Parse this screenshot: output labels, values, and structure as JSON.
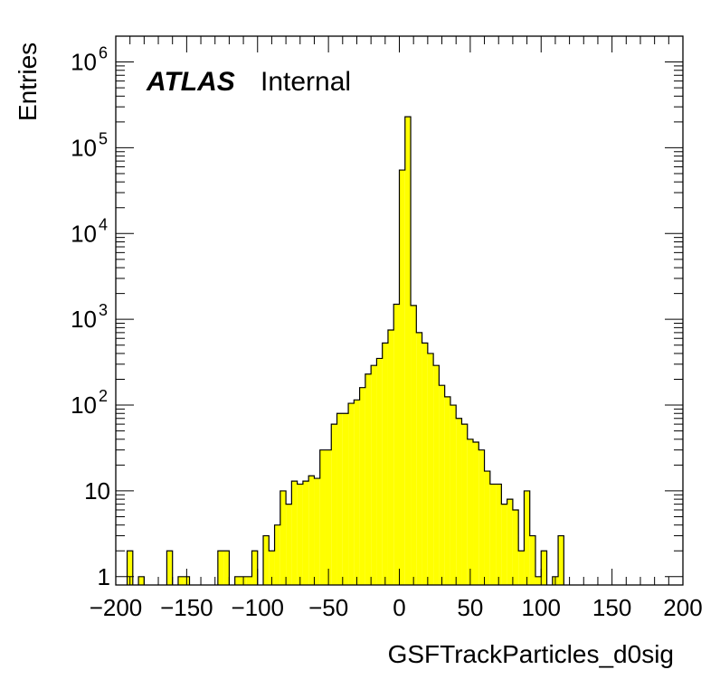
{
  "chart_data": {
    "type": "bar",
    "title": "",
    "xlabel": "GSFTrackParticles_d0sig",
    "ylabel": "Entries",
    "log_y": true,
    "xlim": [
      -200,
      200
    ],
    "ylim": [
      0.8,
      2000000
    ],
    "bin_width": 4,
    "fill_color": "#ffff00",
    "line_color": "#000000",
    "x_ticks": [
      -200,
      -150,
      -100,
      -50,
      0,
      50,
      100,
      150,
      200
    ],
    "x_tick_labels": [
      "−200",
      "−150",
      "−100",
      "−50",
      "0",
      "50",
      "100",
      "150",
      "200"
    ],
    "y_ticks": [
      {
        "value": 1,
        "base": "1",
        "exp": ""
      },
      {
        "value": 10,
        "base": "10",
        "exp": ""
      },
      {
        "value": 100,
        "base": "10",
        "exp": "2"
      },
      {
        "value": 1000,
        "base": "10",
        "exp": "3"
      },
      {
        "value": 10000,
        "base": "10",
        "exp": "4"
      },
      {
        "value": 100000,
        "base": "10",
        "exp": "5"
      },
      {
        "value": 1000000,
        "base": "10",
        "exp": "6"
      }
    ],
    "annotations": {
      "atlas": "ATLAS",
      "status": "Internal"
    },
    "bins": [
      {
        "x": -192,
        "y": 2
      },
      {
        "x": -188,
        "y": 0
      },
      {
        "x": -184,
        "y": 1
      },
      {
        "x": -164,
        "y": 2
      },
      {
        "x": -156,
        "y": 1
      },
      {
        "x": -152,
        "y": 1
      },
      {
        "x": -128,
        "y": 2
      },
      {
        "x": -124,
        "y": 2
      },
      {
        "x": -116,
        "y": 1
      },
      {
        "x": -112,
        "y": 1
      },
      {
        "x": -108,
        "y": 1
      },
      {
        "x": -104,
        "y": 2
      },
      {
        "x": -96,
        "y": 3
      },
      {
        "x": -92,
        "y": 2
      },
      {
        "x": -88,
        "y": 4
      },
      {
        "x": -84,
        "y": 10
      },
      {
        "x": -80,
        "y": 7
      },
      {
        "x": -76,
        "y": 13
      },
      {
        "x": -72,
        "y": 12
      },
      {
        "x": -68,
        "y": 13
      },
      {
        "x": -64,
        "y": 15
      },
      {
        "x": -60,
        "y": 14
      },
      {
        "x": -56,
        "y": 30
      },
      {
        "x": -52,
        "y": 30
      },
      {
        "x": -48,
        "y": 60
      },
      {
        "x": -44,
        "y": 80
      },
      {
        "x": -40,
        "y": 80
      },
      {
        "x": -36,
        "y": 105
      },
      {
        "x": -32,
        "y": 115
      },
      {
        "x": -28,
        "y": 160
      },
      {
        "x": -24,
        "y": 230
      },
      {
        "x": -20,
        "y": 290
      },
      {
        "x": -16,
        "y": 350
      },
      {
        "x": -12,
        "y": 530
      },
      {
        "x": -8,
        "y": 750
      },
      {
        "x": -4,
        "y": 1500
      },
      {
        "x": 0,
        "y": 55000
      },
      {
        "x": 4,
        "y": 230000
      },
      {
        "x": 8,
        "y": 1450
      },
      {
        "x": 12,
        "y": 700
      },
      {
        "x": 16,
        "y": 530
      },
      {
        "x": 20,
        "y": 400
      },
      {
        "x": 24,
        "y": 290
      },
      {
        "x": 28,
        "y": 170
      },
      {
        "x": 32,
        "y": 125
      },
      {
        "x": 36,
        "y": 100
      },
      {
        "x": 40,
        "y": 70
      },
      {
        "x": 44,
        "y": 60
      },
      {
        "x": 48,
        "y": 40
      },
      {
        "x": 52,
        "y": 37
      },
      {
        "x": 56,
        "y": 30
      },
      {
        "x": 60,
        "y": 17
      },
      {
        "x": 64,
        "y": 12
      },
      {
        "x": 68,
        "y": 12
      },
      {
        "x": 72,
        "y": 7
      },
      {
        "x": 76,
        "y": 8
      },
      {
        "x": 80,
        "y": 6
      },
      {
        "x": 84,
        "y": 2
      },
      {
        "x": 88,
        "y": 10
      },
      {
        "x": 92,
        "y": 3
      },
      {
        "x": 96,
        "y": 1
      },
      {
        "x": 100,
        "y": 2
      },
      {
        "x": 104,
        "y": 0
      },
      {
        "x": 108,
        "y": 1
      },
      {
        "x": 112,
        "y": 3
      }
    ]
  }
}
